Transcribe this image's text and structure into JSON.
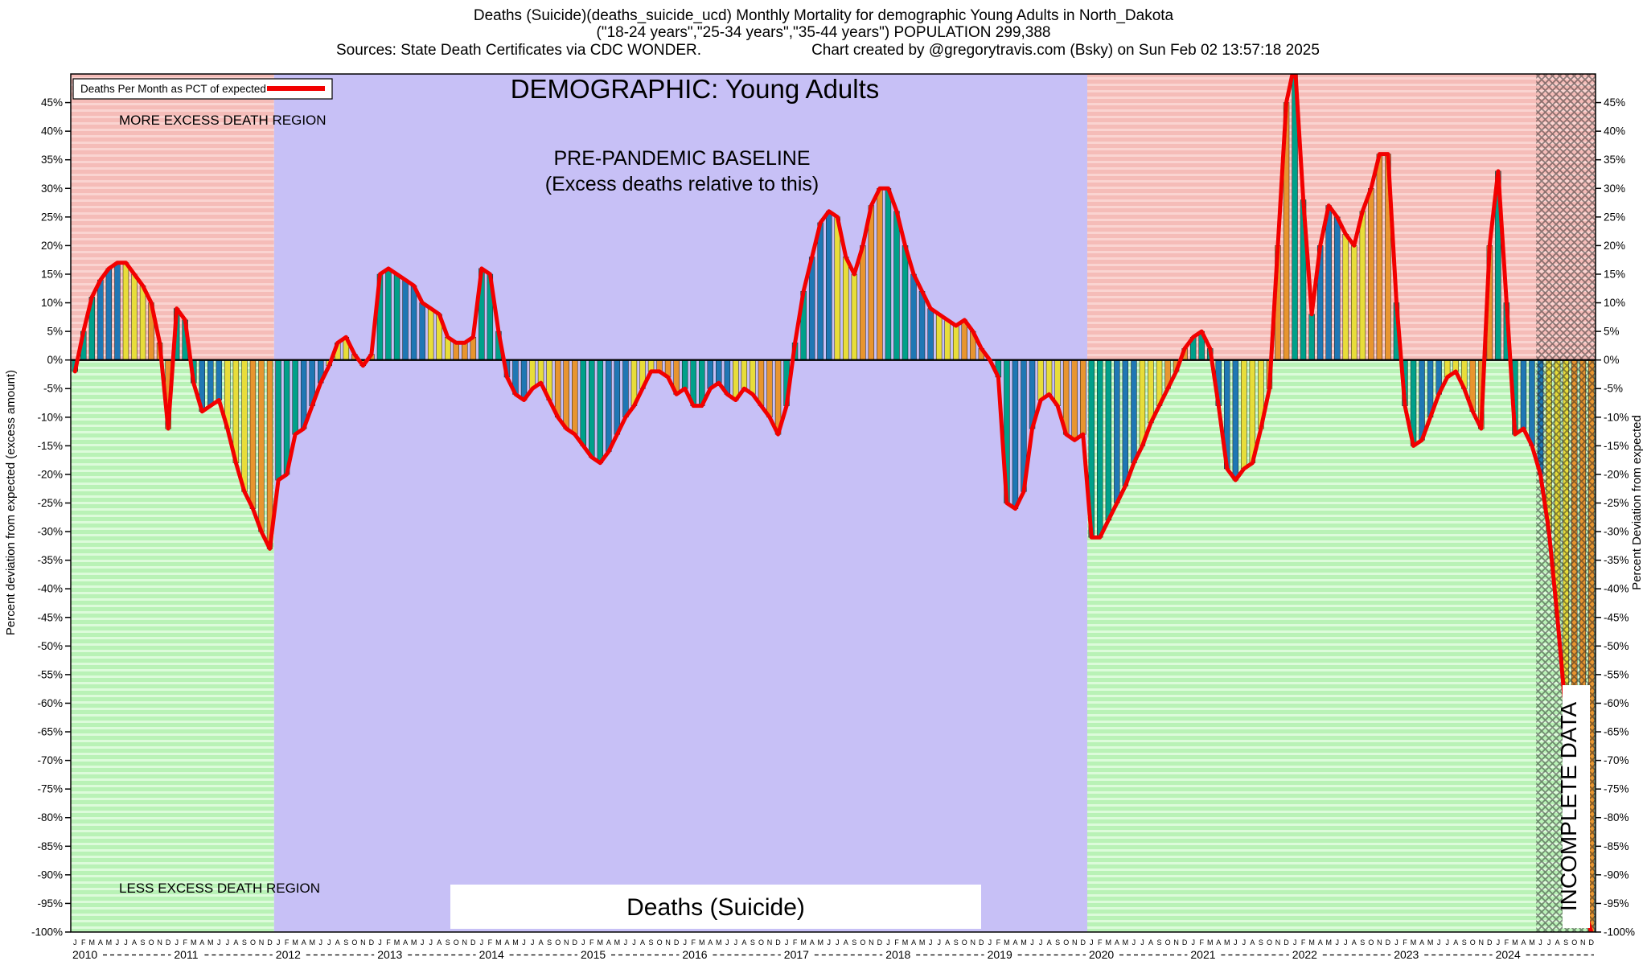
{
  "header": {
    "line1": "Deaths (Suicide)(deaths_suicide_ucd) Monthly Mortality for demographic Young Adults in North_Dakota",
    "line2": "(\"18-24 years\",\"25-34 years\",\"35-44 years\") POPULATION 299,388",
    "sources": "Sources: State Death Certificates via CDC WONDER.",
    "credit": "Chart created by @gregorytravis.com (Bsky) on Sun Feb 02 13:57:18 2025"
  },
  "chart_data": {
    "type": "bar",
    "title": "DEMOGRAPHIC: Young Adults",
    "legend": "Deaths Per Month as PCT of expected",
    "ylabel_left": "Percent deviation from expected (excess amount)",
    "ylabel_right": "Percent Deviation from expected",
    "ylim": [
      -100,
      50
    ],
    "ytick_min": -100,
    "ytick_max": 45,
    "ytick_step": 5,
    "ytick_suffix": "%",
    "grid": false,
    "legend_position": "top-left",
    "start_year": 2010,
    "years": [
      2010,
      2011,
      2012,
      2013,
      2014,
      2015,
      2016,
      2017,
      2018,
      2019,
      2020,
      2021,
      2022,
      2023,
      2024
    ],
    "month_letters": "JFMAMJJASOND",
    "baseline_region": {
      "from": "2012-01",
      "to": "2019-12"
    },
    "incomplete_from": "2024-06",
    "annotations": {
      "more_excess": "MORE EXCESS DEATH REGION",
      "less_excess": "LESS EXCESS DEATH REGION",
      "baseline_line1": "PRE-PANDEMIC BASELINE",
      "baseline_line2": "(Excess deaths relative to this)",
      "bottom_label": "Deaths (Suicide)",
      "incomplete": "INCOMPLETE DATA"
    },
    "colors": {
      "line": "#f20000",
      "quarters": [
        "#00a08a",
        "#1f77b4",
        "#e8dd3a",
        "#e8952f"
      ],
      "baseline_bg": "#c7c0f6",
      "excess_bg": "#f5bcb8",
      "excess_stripe": "#fad4d1",
      "deficit_bg": "#b9f2b6",
      "deficit_stripe": "#ddfbdb",
      "hatch": "#222222",
      "axis": "#000000"
    },
    "series": [
      {
        "name": "Deaths Per Month as PCT of expected",
        "unit": "%",
        "values": [
          -2,
          5,
          11,
          14,
          16,
          17,
          17,
          15,
          13,
          10,
          3,
          -12,
          9,
          7,
          -4,
          -9,
          -8,
          -7,
          -12,
          -18,
          -23,
          -26,
          -30,
          -33,
          -21,
          -20,
          -13,
          -12,
          -8,
          -4,
          -1,
          3,
          4,
          1,
          -1,
          1,
          15,
          16,
          15,
          14,
          13,
          10,
          9,
          8,
          4,
          3,
          3,
          4,
          16,
          15,
          5,
          -3,
          -6,
          -7,
          -5,
          -4,
          -7,
          -10,
          -12,
          -13,
          -15,
          -17,
          -18,
          -16,
          -13,
          -10,
          -8,
          -5,
          -2,
          -2,
          -3,
          -6,
          -5,
          -8,
          -8,
          -5,
          -4,
          -6,
          -7,
          -5,
          -6,
          -8,
          -10,
          -13,
          -8,
          3,
          12,
          18,
          24,
          26,
          25,
          18,
          15,
          20,
          27,
          30,
          30,
          26,
          20,
          15,
          12,
          9,
          8,
          7,
          6,
          7,
          5,
          2,
          0,
          -3,
          -25,
          -26,
          -23,
          -12,
          -7,
          -6,
          -8,
          -13,
          -14,
          -13,
          -31,
          -31,
          -28,
          -25,
          -22,
          -18,
          -15,
          -11,
          -8,
          -5,
          -2,
          2,
          4,
          5,
          2,
          -8,
          -19,
          -21,
          -19,
          -18,
          -12,
          -5,
          20,
          45,
          52,
          28,
          8,
          20,
          27,
          25,
          22,
          20,
          26,
          30,
          36,
          36,
          10,
          -8,
          -15,
          -14,
          -10,
          -6,
          -3,
          -2,
          -5,
          -9,
          -12,
          20,
          33,
          10,
          -13,
          -12,
          -15,
          -20,
          -30,
          -45,
          -62,
          -80,
          -95,
          -100
        ]
      }
    ]
  }
}
